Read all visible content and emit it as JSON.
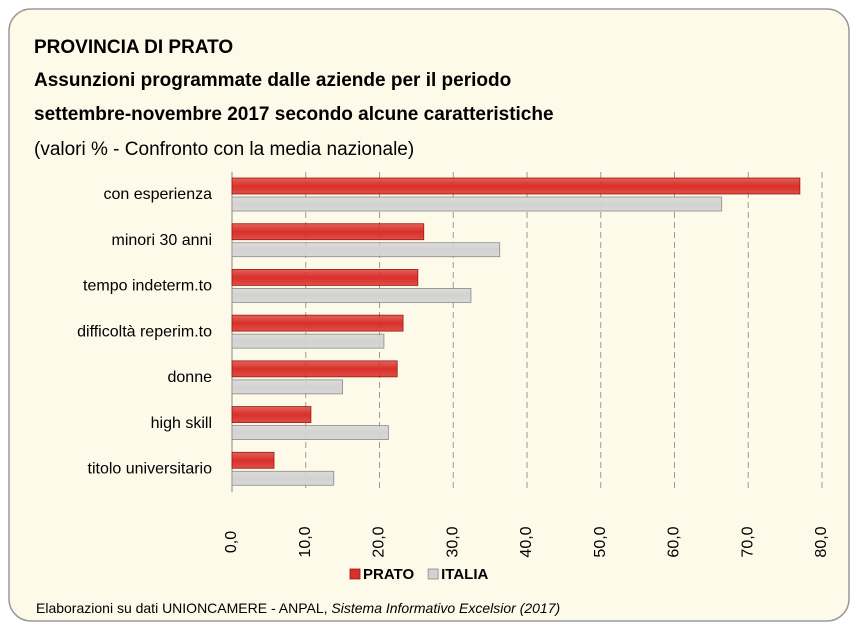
{
  "chart_data": {
    "type": "bar",
    "orientation": "horizontal",
    "title": "PROVINCIA DI PRATO",
    "subtitle": [
      "Assunzioni programmate dalle aziende per il periodo",
      "settembre-novembre 2017 secondo alcune caratteristiche"
    ],
    "note": "(valori % - Confronto con la media nazionale)",
    "categories": [
      "con esperienza",
      "minori 30 anni",
      "tempo indeterm.to",
      "difficoltà reperim.to",
      "donne",
      "high skill",
      "titolo universitario"
    ],
    "series": [
      {
        "name": "PRATO",
        "color": "#d9302a",
        "values": [
          77.0,
          26.0,
          25.2,
          23.2,
          22.4,
          10.7,
          5.7
        ]
      },
      {
        "name": "ITALIA",
        "color": "#d2d2d2",
        "values": [
          66.4,
          36.3,
          32.4,
          20.6,
          15.0,
          21.2,
          13.8
        ]
      }
    ],
    "xlim": [
      0,
      80
    ],
    "xticks": [
      {
        "value": 0,
        "label": "0,0"
      },
      {
        "value": 10,
        "label": "10,0"
      },
      {
        "value": 20,
        "label": "20,0"
      },
      {
        "value": 30,
        "label": "30,0"
      },
      {
        "value": 40,
        "label": "40,0"
      },
      {
        "value": 50,
        "label": "50,0"
      },
      {
        "value": 60,
        "label": "60,0"
      },
      {
        "value": 70,
        "label": "70,0"
      },
      {
        "value": 80,
        "label": "80,0"
      }
    ],
    "grid": true,
    "legend": "bottom",
    "source": "Elaborazioni su dati UNIONCAMERE - ANPAL, ",
    "source_italic": "Sistema Informativo Excelsior (2017)"
  }
}
